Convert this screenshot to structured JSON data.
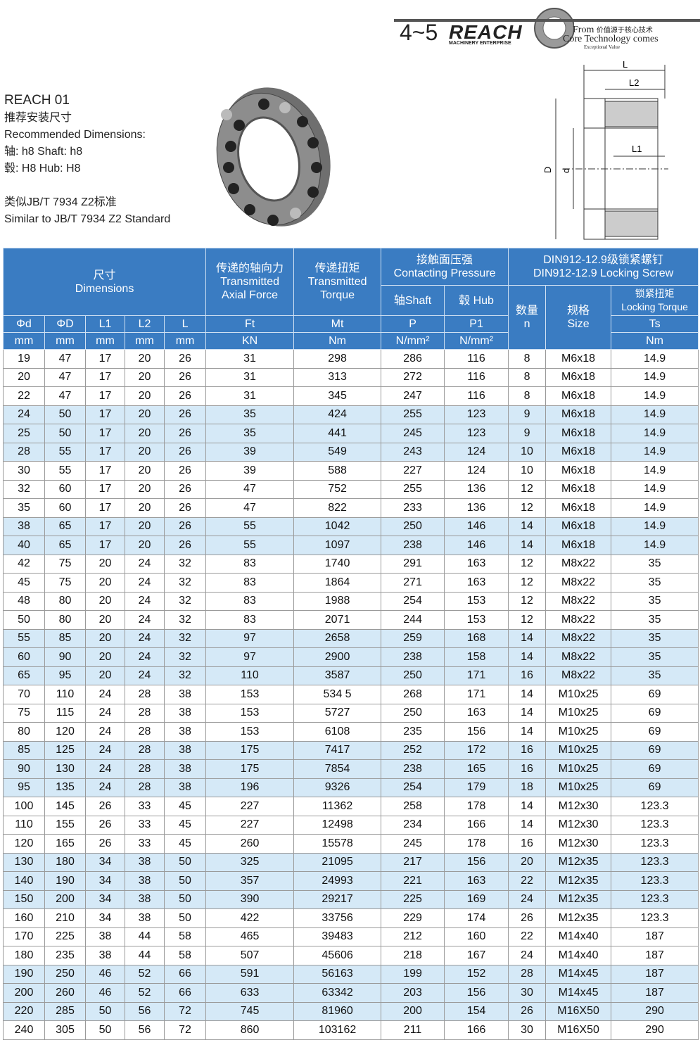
{
  "header": {
    "number": "4~5",
    "brand": "REACH",
    "brand_sub": "MACHINERY ENTERPRISE",
    "slogan_from": "From",
    "slogan_cn": "价值源于核心技术",
    "slogan_en": "Core Technology comes",
    "slogan_small": "Exceptional Value"
  },
  "intro": {
    "model": "REACH 01",
    "lines": [
      "推荐安装尺寸",
      "Recommended Dimensions:",
      "轴:  h8 Shaft: h8",
      "毂:  H8 Hub: H8"
    ],
    "standard": [
      "类似JB/T 7934 Z2标准",
      "Similar to JB/T 7934 Z2 Standard"
    ]
  },
  "diagram": {
    "labels": [
      "L",
      "L2",
      "L1",
      "D",
      "d"
    ]
  },
  "table": {
    "header": {
      "dimensions": [
        "尺寸",
        "Dimensions"
      ],
      "axial_force": [
        "传递的轴向力",
        "Transmitted",
        "Axial Force"
      ],
      "torque": [
        "传递扭矩",
        "Transmitted",
        "Torque"
      ],
      "pressure": [
        "接触面压强",
        "Contacting Pressure"
      ],
      "screw": [
        "DIN912-12.9级锁紧螺钉",
        "DIN912-12.9 Locking Screw"
      ],
      "shaft": "轴Shaft",
      "hub": "毂 Hub",
      "count": [
        "数量",
        "n"
      ],
      "size": [
        "规格",
        "Size"
      ],
      "locking_torque": [
        "锁紧扭矩",
        "Locking Torque"
      ],
      "symbols": [
        "Φd",
        "ΦD",
        "L1",
        "L2",
        "L",
        "Ft",
        "Mt",
        "P",
        "P1",
        "Ts"
      ],
      "units": [
        "mm",
        "mm",
        "mm",
        "mm",
        "mm",
        "KN",
        "Nm",
        "N/mm²",
        "N/mm²",
        "Nm"
      ]
    },
    "rows": [
      [
        19,
        47,
        17,
        20,
        26,
        31,
        298,
        286,
        116,
        8,
        "M6x18",
        14.9
      ],
      [
        20,
        47,
        17,
        20,
        26,
        31,
        313,
        272,
        116,
        8,
        "M6x18",
        14.9
      ],
      [
        22,
        47,
        17,
        20,
        26,
        31,
        345,
        247,
        116,
        8,
        "M6x18",
        14.9
      ],
      [
        24,
        50,
        17,
        20,
        26,
        35,
        424,
        255,
        123,
        9,
        "M6x18",
        14.9
      ],
      [
        25,
        50,
        17,
        20,
        26,
        35,
        441,
        245,
        123,
        9,
        "M6x18",
        14.9
      ],
      [
        28,
        55,
        17,
        20,
        26,
        39,
        549,
        243,
        124,
        10,
        "M6x18",
        14.9
      ],
      [
        30,
        55,
        17,
        20,
        26,
        39,
        588,
        227,
        124,
        10,
        "M6x18",
        14.9
      ],
      [
        32,
        60,
        17,
        20,
        26,
        47,
        752,
        255,
        136,
        12,
        "M6x18",
        14.9
      ],
      [
        35,
        60,
        17,
        20,
        26,
        47,
        822,
        233,
        136,
        12,
        "M6x18",
        14.9
      ],
      [
        38,
        65,
        17,
        20,
        26,
        55,
        1042,
        250,
        146,
        14,
        "M6x18",
        14.9
      ],
      [
        40,
        65,
        17,
        20,
        26,
        55,
        1097,
        238,
        146,
        14,
        "M6x18",
        14.9
      ],
      [
        42,
        75,
        20,
        24,
        32,
        83,
        1740,
        291,
        163,
        12,
        "M8x22",
        35
      ],
      [
        45,
        75,
        20,
        24,
        32,
        83,
        1864,
        271,
        163,
        12,
        "M8x22",
        35
      ],
      [
        48,
        80,
        20,
        24,
        32,
        83,
        1988,
        254,
        153,
        12,
        "M8x22",
        35
      ],
      [
        50,
        80,
        20,
        24,
        32,
        83,
        2071,
        244,
        153,
        12,
        "M8x22",
        35
      ],
      [
        55,
        85,
        20,
        24,
        32,
        97,
        2658,
        259,
        168,
        14,
        "M8x22",
        35
      ],
      [
        60,
        90,
        20,
        24,
        32,
        97,
        2900,
        238,
        158,
        14,
        "M8x22",
        35
      ],
      [
        65,
        95,
        20,
        24,
        32,
        110,
        3587,
        250,
        171,
        16,
        "M8x22",
        35
      ],
      [
        70,
        110,
        24,
        28,
        38,
        153,
        "534 5",
        268,
        171,
        14,
        "M10x25",
        69
      ],
      [
        75,
        115,
        24,
        28,
        38,
        153,
        5727,
        250,
        163,
        14,
        "M10x25",
        69
      ],
      [
        80,
        120,
        24,
        28,
        38,
        153,
        6108,
        235,
        156,
        14,
        "M10x25",
        69
      ],
      [
        85,
        125,
        24,
        28,
        38,
        175,
        7417,
        252,
        172,
        16,
        "M10x25",
        69
      ],
      [
        90,
        130,
        24,
        28,
        38,
        175,
        7854,
        238,
        165,
        16,
        "M10x25",
        69
      ],
      [
        95,
        135,
        24,
        28,
        38,
        196,
        9326,
        254,
        179,
        18,
        "M10x25",
        69
      ],
      [
        100,
        145,
        26,
        33,
        45,
        227,
        11362,
        258,
        178,
        14,
        "M12x30",
        123.3
      ],
      [
        110,
        155,
        26,
        33,
        45,
        227,
        12498,
        234,
        166,
        14,
        "M12x30",
        123.3
      ],
      [
        120,
        165,
        26,
        33,
        45,
        260,
        15578,
        245,
        178,
        16,
        "M12x30",
        123.3
      ],
      [
        130,
        180,
        34,
        38,
        50,
        325,
        21095,
        217,
        156,
        20,
        "M12x35",
        123.3
      ],
      [
        140,
        190,
        34,
        38,
        50,
        357,
        24993,
        221,
        163,
        22,
        "M12x35",
        123.3
      ],
      [
        150,
        200,
        34,
        38,
        50,
        390,
        29217,
        225,
        169,
        24,
        "M12x35",
        123.3
      ],
      [
        160,
        210,
        34,
        38,
        50,
        422,
        33756,
        229,
        174,
        26,
        "M12x35",
        123.3
      ],
      [
        170,
        225,
        38,
        44,
        58,
        465,
        39483,
        212,
        160,
        22,
        "M14x40",
        187
      ],
      [
        180,
        235,
        38,
        44,
        58,
        507,
        45606,
        218,
        167,
        24,
        "M14x40",
        187
      ],
      [
        190,
        250,
        46,
        52,
        66,
        591,
        56163,
        199,
        152,
        28,
        "M14x45",
        187
      ],
      [
        200,
        260,
        46,
        52,
        66,
        633,
        63342,
        203,
        156,
        30,
        "M14x45",
        187
      ],
      [
        220,
        285,
        50,
        56,
        72,
        745,
        81960,
        200,
        154,
        26,
        "M16X50",
        290
      ],
      [
        240,
        305,
        50,
        56,
        72,
        860,
        103162,
        211,
        166,
        30,
        "M16X50",
        290
      ]
    ]
  }
}
